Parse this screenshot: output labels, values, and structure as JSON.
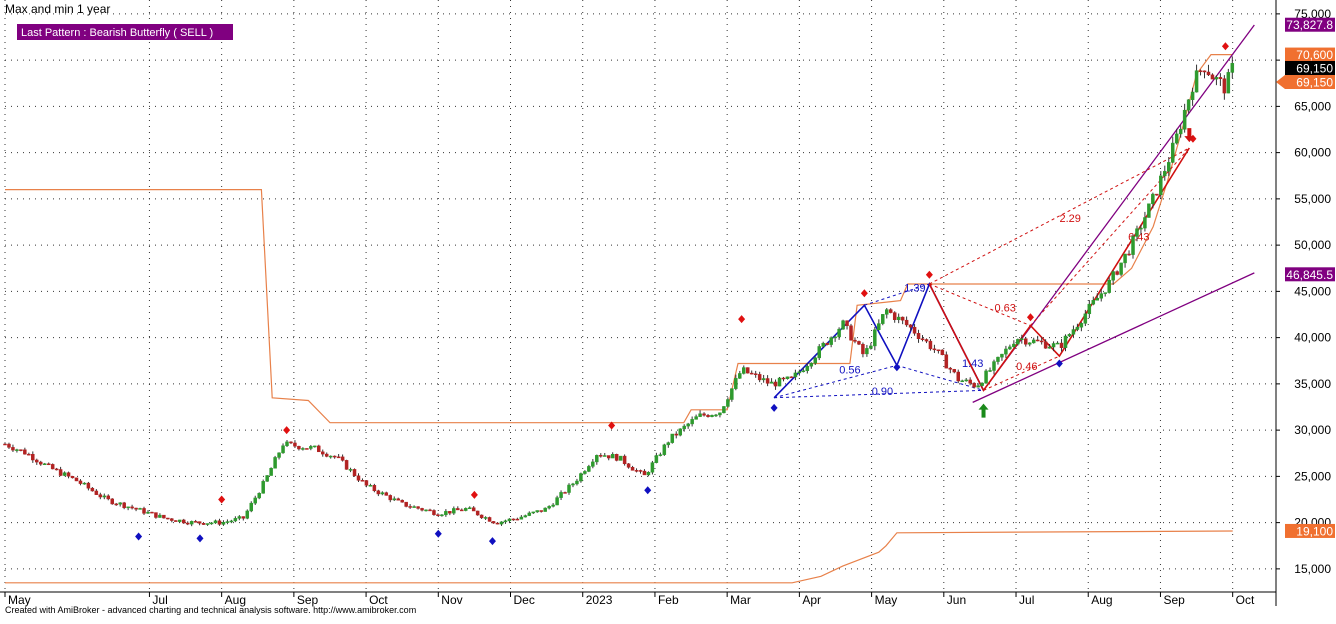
{
  "chart_data": {
    "type": "candlestick",
    "title": "Max and min 1 year",
    "pattern_label": "Last Pattern : Bearish Butterfly ( SELL )",
    "footer": "Created with AmiBroker - advanced charting and technical analysis software. http://www.amibroker.com",
    "ylim": [
      12500,
      76500
    ],
    "y_ticks": [
      15000,
      20000,
      25000,
      30000,
      35000,
      40000,
      45000,
      50000,
      55000,
      60000,
      65000,
      70000,
      75000
    ],
    "y_tick_labels": [
      "15,000",
      "20,000",
      "25,000",
      "30,000",
      "35,000",
      "40,000",
      "45,000",
      "50,000",
      "55,000",
      "60,000",
      "65,000",
      "70,000",
      "75,000"
    ],
    "x_range": [
      0,
      17.6
    ],
    "x_labels": [
      {
        "label": "May",
        "x": 0
      },
      {
        "label": "Jul",
        "x": 2
      },
      {
        "label": "Aug",
        "x": 3
      },
      {
        "label": "Sep",
        "x": 4
      },
      {
        "label": "Oct",
        "x": 5
      },
      {
        "label": "Nov",
        "x": 6
      },
      {
        "label": "Dec",
        "x": 7
      },
      {
        "label": "2023",
        "x": 8
      },
      {
        "label": "Feb",
        "x": 9
      },
      {
        "label": "Mar",
        "x": 10
      },
      {
        "label": "Apr",
        "x": 11
      },
      {
        "label": "May",
        "x": 12
      },
      {
        "label": "Jun",
        "x": 13
      },
      {
        "label": "Jul",
        "x": 14
      },
      {
        "label": "Aug",
        "x": 15
      },
      {
        "label": "Sep",
        "x": 16
      },
      {
        "label": "Oct",
        "x": 17
      }
    ],
    "grid": true,
    "price_tags": [
      {
        "text": "73,827.8",
        "value": 73827.8,
        "color": "#800080",
        "text_color": "#ffffff"
      },
      {
        "text": "70,600",
        "value": 70600,
        "color": "#f07030",
        "text_color": "#ffffff"
      },
      {
        "text": "69,150",
        "value": 69150,
        "color": "#000000",
        "text_color": "#ffffff"
      },
      {
        "text": "69,150",
        "value": 69150,
        "color": "#f07030",
        "text_color": "#ffffff"
      },
      {
        "text": "46,845.5",
        "value": 46845.5,
        "color": "#800080",
        "text_color": "#ffffff"
      },
      {
        "text": "19,100",
        "value": 19100,
        "color": "#f07030",
        "text_color": "#ffffff"
      }
    ],
    "max_line": [
      [
        0.0,
        56000
      ],
      [
        3.55,
        56000
      ],
      [
        3.7,
        33500
      ],
      [
        4.2,
        33200
      ],
      [
        4.5,
        30800
      ],
      [
        9.4,
        30800
      ],
      [
        9.5,
        32200
      ],
      [
        10.0,
        32200
      ],
      [
        10.15,
        37200
      ],
      [
        11.7,
        37200
      ],
      [
        11.8,
        43500
      ],
      [
        12.4,
        44000
      ],
      [
        12.5,
        45800
      ],
      [
        15.35,
        45800
      ],
      [
        15.6,
        47500
      ],
      [
        15.9,
        52000
      ],
      [
        16.1,
        57000
      ],
      [
        16.3,
        62500
      ],
      [
        16.5,
        68500
      ],
      [
        16.7,
        70600
      ],
      [
        17.0,
        70600
      ]
    ],
    "min_line": [
      [
        0.0,
        13500
      ],
      [
        10.9,
        13500
      ],
      [
        11.3,
        14200
      ],
      [
        11.6,
        15300
      ],
      [
        12.1,
        16800
      ],
      [
        12.2,
        17500
      ],
      [
        12.35,
        18900
      ],
      [
        17.0,
        19100
      ]
    ],
    "price_series": [
      [
        0.0,
        28500
      ],
      [
        0.3,
        27500
      ],
      [
        0.6,
        26000
      ],
      [
        1.0,
        24500
      ],
      [
        1.4,
        22500
      ],
      [
        1.8,
        21500
      ],
      [
        2.2,
        20500
      ],
      [
        2.6,
        20000
      ],
      [
        3.0,
        20000
      ],
      [
        3.3,
        20500
      ],
      [
        3.6,
        24500
      ],
      [
        3.85,
        28500
      ],
      [
        4.3,
        28000
      ],
      [
        4.6,
        27000
      ],
      [
        5.0,
        24000
      ],
      [
        5.5,
        22000
      ],
      [
        6.0,
        21000
      ],
      [
        6.4,
        21500
      ],
      [
        6.8,
        20000
      ],
      [
        7.1,
        20500
      ],
      [
        7.5,
        21500
      ],
      [
        7.9,
        24500
      ],
      [
        8.2,
        27500
      ],
      [
        8.5,
        27000
      ],
      [
        8.85,
        25000
      ],
      [
        9.2,
        29000
      ],
      [
        9.6,
        31500
      ],
      [
        9.9,
        32000
      ],
      [
        10.2,
        36500
      ],
      [
        10.6,
        35000
      ],
      [
        10.9,
        35500
      ],
      [
        11.2,
        38000
      ],
      [
        11.6,
        41500
      ],
      [
        11.9,
        38000
      ],
      [
        12.2,
        43000
      ],
      [
        12.55,
        41000
      ],
      [
        12.9,
        38500
      ],
      [
        13.2,
        35500
      ],
      [
        13.45,
        34800
      ],
      [
        13.7,
        37000
      ],
      [
        14.0,
        40000
      ],
      [
        14.3,
        39500
      ],
      [
        14.6,
        39000
      ],
      [
        14.9,
        42000
      ],
      [
        15.3,
        46000
      ],
      [
        15.6,
        50000
      ],
      [
        15.9,
        55000
      ],
      [
        16.2,
        61000
      ],
      [
        16.45,
        67500
      ],
      [
        16.6,
        69500
      ],
      [
        16.75,
        68000
      ],
      [
        16.9,
        67000
      ],
      [
        17.0,
        69150
      ]
    ],
    "harmonic_pattern_1": {
      "color": "#1010c0",
      "points": [
        [
          10.65,
          33500
        ],
        [
          11.9,
          43500
        ],
        [
          12.35,
          37000
        ],
        [
          12.8,
          45800
        ],
        [
          13.55,
          34300
        ]
      ],
      "ratios": [
        {
          "text": "0.56",
          "x": 11.7,
          "y": 36100
        },
        {
          "text": "1.39",
          "x": 12.6,
          "y": 45000
        },
        {
          "text": "1.43",
          "x": 13.4,
          "y": 36800
        },
        {
          "text": "0.90",
          "x": 12.15,
          "y": 33800
        }
      ]
    },
    "harmonic_pattern_2": {
      "color": "#d01010",
      "points": [
        [
          12.8,
          45800
        ],
        [
          13.55,
          34300
        ],
        [
          14.2,
          41300
        ],
        [
          14.6,
          38000
        ],
        [
          16.4,
          60500
        ]
      ],
      "ratios": [
        {
          "text": "0.63",
          "x": 13.85,
          "y": 42800
        },
        {
          "text": "0.46",
          "x": 14.15,
          "y": 36500
        },
        {
          "text": "2.29",
          "x": 14.75,
          "y": 52500
        },
        {
          "text": "6.43",
          "x": 15.7,
          "y": 50500
        }
      ]
    },
    "trend_lines": [
      {
        "color": "#800080",
        "from": [
          13.4,
          33000
        ],
        "to": [
          17.3,
          47000
        ]
      },
      {
        "color": "#800080",
        "from": [
          13.55,
          34300
        ],
        "to": [
          17.3,
          73800
        ]
      }
    ],
    "high_markers": [
      [
        3.0,
        22500
      ],
      [
        3.9,
        30000
      ],
      [
        6.5,
        23000
      ],
      [
        8.4,
        30500
      ],
      [
        10.2,
        42000
      ],
      [
        11.9,
        44800
      ],
      [
        12.8,
        46800
      ],
      [
        14.2,
        42200
      ],
      [
        16.45,
        61500
      ],
      [
        16.9,
        71500
      ]
    ],
    "low_markers": [
      [
        1.85,
        18500
      ],
      [
        2.7,
        18300
      ],
      [
        6.0,
        18800
      ],
      [
        6.75,
        18000
      ],
      [
        8.9,
        23500
      ],
      [
        10.65,
        32400
      ],
      [
        12.35,
        36800
      ],
      [
        14.6,
        37200
      ]
    ],
    "buy_arrows": [
      [
        13.55,
        32000
      ]
    ],
    "sell_arrows": [
      [
        16.4,
        62000
      ]
    ]
  }
}
